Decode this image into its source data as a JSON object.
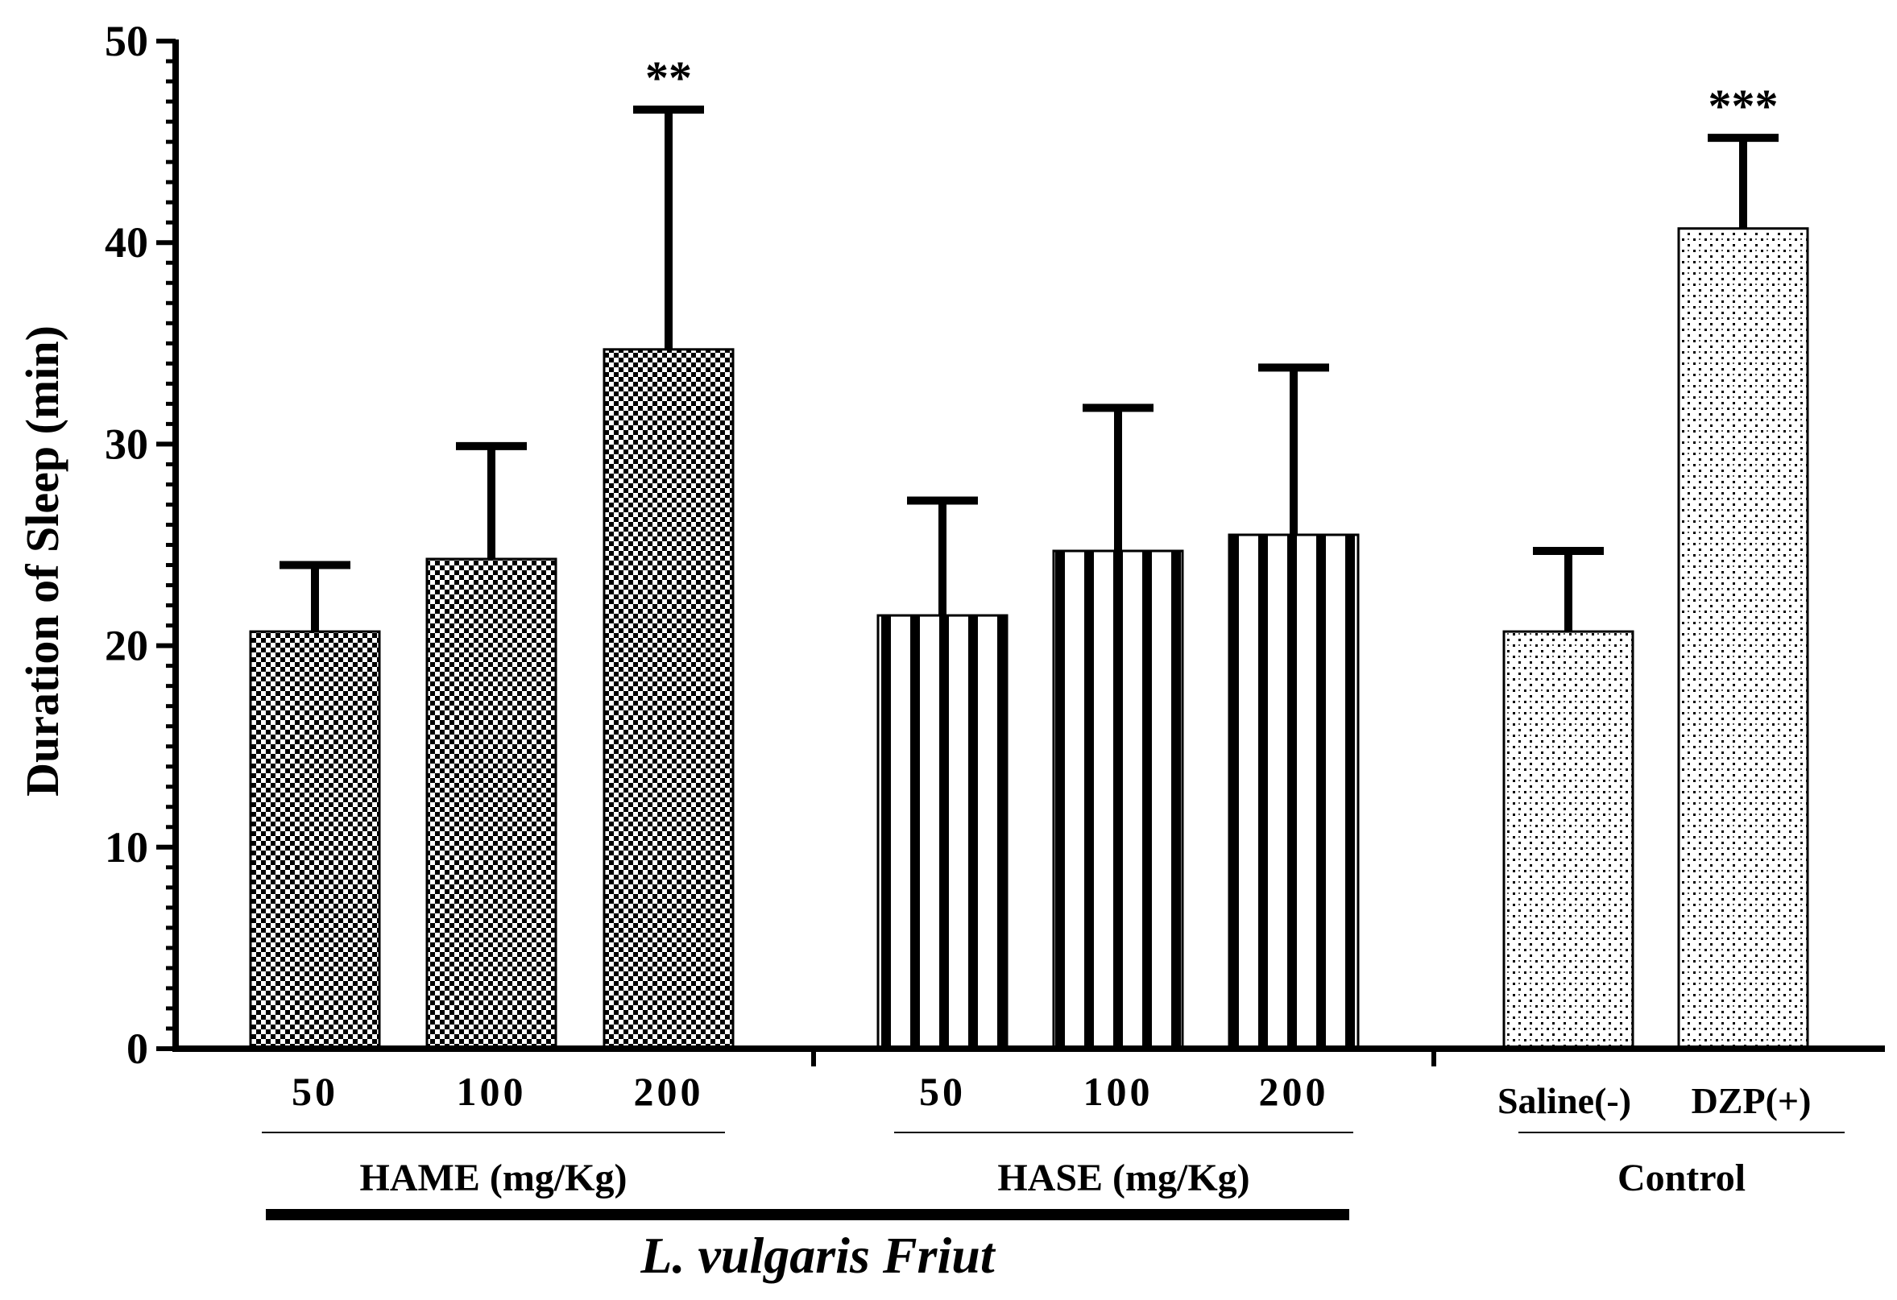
{
  "chart_data": {
    "type": "bar",
    "title": "",
    "ylabel": "Duration of Sleep (min)",
    "xlabel": "L. vulgaris Friut",
    "ylim": [
      0,
      50
    ],
    "yticks": [
      "0",
      "10",
      "20",
      "30",
      "40",
      "50"
    ],
    "groups": [
      {
        "name": "HAME (mg/Kg)",
        "pattern": "checker",
        "bars": [
          {
            "label": "50",
            "value": 20.7,
            "error": 3.3,
            "sig": ""
          },
          {
            "label": "100",
            "value": 24.3,
            "error": 5.6,
            "sig": ""
          },
          {
            "label": "200",
            "value": 34.7,
            "error": 11.9,
            "sig": "**"
          }
        ]
      },
      {
        "name": "HASE (mg/Kg)",
        "pattern": "stripes",
        "bars": [
          {
            "label": "50",
            "value": 21.5,
            "error": 5.7,
            "sig": ""
          },
          {
            "label": "100",
            "value": 24.7,
            "error": 7.1,
            "sig": ""
          },
          {
            "label": "200",
            "value": 25.5,
            "error": 8.3,
            "sig": ""
          }
        ]
      },
      {
        "name": "Control",
        "pattern": "dots",
        "bars": [
          {
            "label": "Saline(-)",
            "value": 20.7,
            "error": 4.0,
            "sig": ""
          },
          {
            "label": "DZP(+)",
            "value": 40.7,
            "error": 4.5,
            "sig": "***"
          }
        ]
      }
    ],
    "supergroup": "L. vulgaris Friut"
  }
}
